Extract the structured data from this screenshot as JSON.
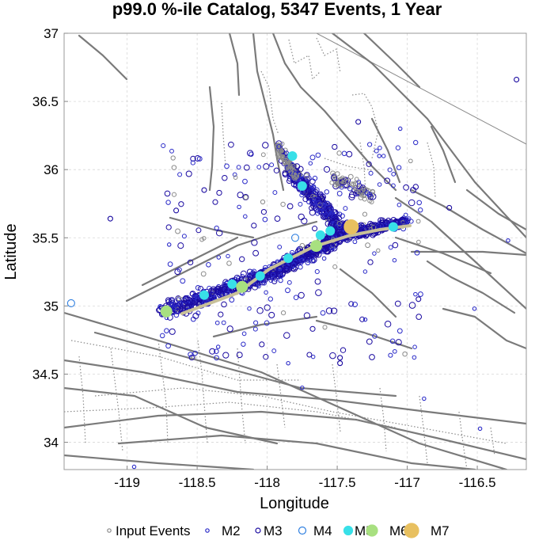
{
  "chart_data": {
    "type": "scatter",
    "title": "p99.0 %-ile Catalog, 5347 Events, 1 Year",
    "xlabel": "Longitude",
    "ylabel": "Latitude",
    "xlim": [
      -119.45,
      -116.15
    ],
    "ylim": [
      33.8,
      37.0
    ],
    "xticks": [
      -119,
      -118.5,
      -118,
      -117.5,
      -117,
      -116.5
    ],
    "xtick_labels": [
      "-119",
      "-118.5",
      "-118",
      "-117.5",
      "-117",
      "-116.5"
    ],
    "yticks": [
      34,
      34.5,
      35,
      35.5,
      36,
      36.5,
      37
    ],
    "ytick_labels": [
      "34",
      "34.5",
      "35",
      "35.5",
      "36",
      "36.5",
      "37"
    ],
    "grid": true,
    "legend_position": "bottom",
    "legend": [
      {
        "name": "Input Events",
        "color": "#8a8a8a",
        "fill": false,
        "r": 2.2
      },
      {
        "name": "M2",
        "color": "#2a2ac8",
        "fill": false,
        "r": 2.2
      },
      {
        "name": "M3",
        "color": "#1a0aa0",
        "fill": false,
        "r": 3.0
      },
      {
        "name": "M4",
        "color": "#2f7fe0",
        "fill": false,
        "r": 4.5
      },
      {
        "name": "M5",
        "color": "#38e0e8",
        "fill": true,
        "r": 5.5
      },
      {
        "name": "M6",
        "color": "#a8e080",
        "fill": true,
        "r": 7.0
      },
      {
        "name": "M7",
        "color": "#e8c060",
        "fill": true,
        "r": 9.0
      }
    ],
    "large_events": [
      {
        "x": -117.4,
        "y": 35.58,
        "mag": 7
      },
      {
        "x": -117.65,
        "y": 35.44,
        "mag": 6
      },
      {
        "x": -118.18,
        "y": 35.14,
        "mag": 6
      },
      {
        "x": -118.72,
        "y": 34.96,
        "mag": 6
      },
      {
        "x": -117.82,
        "y": 36.1,
        "mag": 5
      },
      {
        "x": -117.75,
        "y": 35.88,
        "mag": 5
      },
      {
        "x": -117.1,
        "y": 35.58,
        "mag": 5
      },
      {
        "x": -117.85,
        "y": 35.35,
        "mag": 5
      },
      {
        "x": -118.05,
        "y": 35.22,
        "mag": 5
      },
      {
        "x": -118.25,
        "y": 35.16,
        "mag": 5
      },
      {
        "x": -118.45,
        "y": 35.08,
        "mag": 5
      },
      {
        "x": -117.62,
        "y": 35.52,
        "mag": 5
      },
      {
        "x": -117.55,
        "y": 35.55,
        "mag": 5
      }
    ],
    "outlier_events": [
      {
        "x": -119.4,
        "y": 35.02,
        "mag": 4
      },
      {
        "x": -117.8,
        "y": 35.5,
        "mag": 4
      },
      {
        "x": -116.22,
        "y": 36.66,
        "mag": 3
      },
      {
        "x": -119.12,
        "y": 35.64,
        "mag": 3
      },
      {
        "x": -118.45,
        "y": 35.85,
        "mag": 3
      },
      {
        "x": -118.65,
        "y": 35.7,
        "mag": 3
      },
      {
        "x": -117.48,
        "y": 34.62,
        "mag": 3
      },
      {
        "x": -117.48,
        "y": 34.58,
        "mag": 3
      },
      {
        "x": -117.35,
        "y": 36.35,
        "mag": 3
      },
      {
        "x": -117.05,
        "y": 36.3,
        "mag": 2
      },
      {
        "x": -116.7,
        "y": 35.72,
        "mag": 3
      },
      {
        "x": -116.92,
        "y": 35.05,
        "mag": 3
      },
      {
        "x": -116.52,
        "y": 34.98,
        "mag": 2
      },
      {
        "x": -116.28,
        "y": 35.48,
        "mag": 2
      },
      {
        "x": -117.85,
        "y": 34.58,
        "mag": 2
      },
      {
        "x": -118.35,
        "y": 34.7,
        "mag": 2
      },
      {
        "x": -117.2,
        "y": 36.1,
        "mag": 2
      },
      {
        "x": -118.7,
        "y": 35.45,
        "mag": 2
      },
      {
        "x": -117.75,
        "y": 34.4,
        "mag": 2
      },
      {
        "x": -118.95,
        "y": 33.82,
        "mag": 2
      },
      {
        "x": -116.48,
        "y": 34.1,
        "mag": 2
      },
      {
        "x": -116.88,
        "y": 34.32,
        "mag": 2
      },
      {
        "x": -117.3,
        "y": 34.9,
        "mag": 2
      }
    ],
    "clusters": [
      {
        "type": "line",
        "x0": -118.75,
        "y0": 34.95,
        "x1": -117.95,
        "y1": 35.25,
        "n": 420,
        "spread": 0.055,
        "mix": [
          0.05,
          0.35,
          0.6
        ]
      },
      {
        "type": "line",
        "x0": -117.95,
        "y0": 35.25,
        "x1": -117.5,
        "y1": 35.5,
        "n": 420,
        "spread": 0.055,
        "mix": [
          0.05,
          0.35,
          0.6
        ]
      },
      {
        "type": "line",
        "x0": -117.55,
        "y0": 35.5,
        "x1": -117.0,
        "y1": 35.62,
        "n": 320,
        "spread": 0.04,
        "mix": [
          0.05,
          0.35,
          0.6
        ]
      },
      {
        "type": "line",
        "x0": -117.85,
        "y0": 36.02,
        "x1": -117.45,
        "y1": 35.55,
        "n": 360,
        "spread": 0.05,
        "mix": [
          0.1,
          0.3,
          0.6
        ]
      },
      {
        "type": "line",
        "x0": -117.92,
        "y0": 36.18,
        "x1": -117.8,
        "y1": 35.95,
        "n": 90,
        "spread": 0.03,
        "mix": [
          0.75,
          0.1,
          0.15
        ]
      },
      {
        "type": "line",
        "x0": -117.55,
        "y0": 35.95,
        "x1": -117.25,
        "y1": 35.8,
        "n": 80,
        "spread": 0.05,
        "mix": [
          0.7,
          0.1,
          0.2
        ]
      },
      {
        "type": "box",
        "x0": -118.75,
        "y0": 34.6,
        "x1": -116.9,
        "y1": 36.2,
        "n": 230,
        "mix": [
          0.1,
          0.5,
          0.4
        ]
      }
    ]
  }
}
